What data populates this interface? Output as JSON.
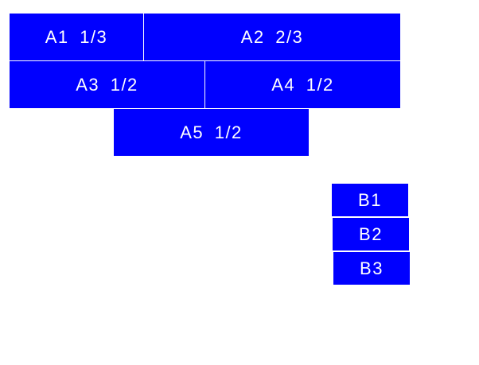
{
  "colors": {
    "box": "#0000ff",
    "text": "#ffffff"
  },
  "group_a": [
    {
      "label": "A1 1/3",
      "fraction": "1/3"
    },
    {
      "label": "A2 2/3",
      "fraction": "2/3"
    },
    {
      "label": "A3 1/2",
      "fraction": "1/2"
    },
    {
      "label": "A4 1/2",
      "fraction": "1/2"
    },
    {
      "label": "A5 1/2",
      "fraction": "1/2"
    }
  ],
  "group_b": [
    {
      "label": "B1"
    },
    {
      "label": "B2"
    },
    {
      "label": "B3"
    }
  ]
}
